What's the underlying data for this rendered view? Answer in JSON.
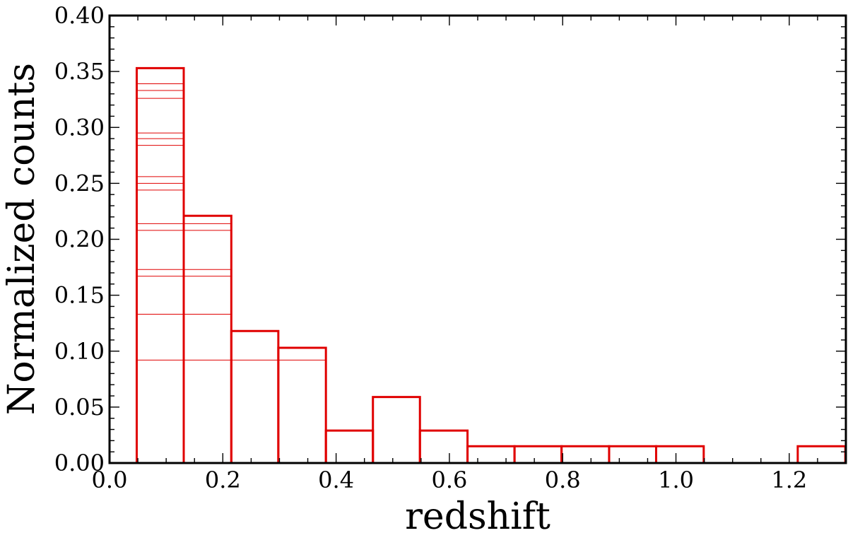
{
  "chart_data": {
    "type": "bar",
    "xlabel": "redshift",
    "ylabel": "Normalized counts",
    "xlim": [
      0.0,
      1.3
    ],
    "ylim": [
      0.0,
      0.4
    ],
    "x_ticks": [
      "0.0",
      "0.2",
      "0.4",
      "0.6",
      "0.8",
      "1.0",
      "1.2"
    ],
    "y_ticks": [
      "0.00",
      "0.05",
      "0.10",
      "0.15",
      "0.20",
      "0.25",
      "0.30",
      "0.35",
      "0.40"
    ],
    "color": "#e00000",
    "bins": [
      {
        "x0": 0.048,
        "x1": 0.131,
        "value": 0.353
      },
      {
        "x0": 0.131,
        "x1": 0.215,
        "value": 0.221
      },
      {
        "x0": 0.215,
        "x1": 0.298,
        "value": 0.118
      },
      {
        "x0": 0.298,
        "x1": 0.382,
        "value": 0.103
      },
      {
        "x0": 0.382,
        "x1": 0.465,
        "value": 0.029
      },
      {
        "x0": 0.465,
        "x1": 0.548,
        "value": 0.059
      },
      {
        "x0": 0.548,
        "x1": 0.632,
        "value": 0.029
      },
      {
        "x0": 0.632,
        "x1": 0.715,
        "value": 0.015
      },
      {
        "x0": 0.715,
        "x1": 0.798,
        "value": 0.015
      },
      {
        "x0": 0.798,
        "x1": 0.882,
        "value": 0.015
      },
      {
        "x0": 0.882,
        "x1": 0.965,
        "value": 0.015
      },
      {
        "x0": 0.965,
        "x1": 1.049,
        "value": 0.015
      },
      {
        "x0": 1.049,
        "x1": 1.132,
        "value": 0.0
      },
      {
        "x0": 1.132,
        "x1": 1.215,
        "value": 0.0
      },
      {
        "x0": 1.215,
        "x1": 1.299,
        "value": 0.015
      }
    ],
    "stacked_edges": [
      {
        "x0": 0.048,
        "x1": 0.131,
        "value": 0.339
      },
      {
        "x0": 0.048,
        "x1": 0.131,
        "value": 0.333
      },
      {
        "x0": 0.048,
        "x1": 0.131,
        "value": 0.326
      },
      {
        "x0": 0.048,
        "x1": 0.131,
        "value": 0.295
      },
      {
        "x0": 0.048,
        "x1": 0.131,
        "value": 0.29
      },
      {
        "x0": 0.048,
        "x1": 0.131,
        "value": 0.284
      },
      {
        "x0": 0.048,
        "x1": 0.131,
        "value": 0.256
      },
      {
        "x0": 0.048,
        "x1": 0.131,
        "value": 0.25
      },
      {
        "x0": 0.048,
        "x1": 0.131,
        "value": 0.244
      },
      {
        "x0": 0.048,
        "x1": 0.215,
        "value": 0.214
      },
      {
        "x0": 0.048,
        "x1": 0.215,
        "value": 0.208
      },
      {
        "x0": 0.048,
        "x1": 0.215,
        "value": 0.173
      },
      {
        "x0": 0.048,
        "x1": 0.215,
        "value": 0.167
      },
      {
        "x0": 0.048,
        "x1": 0.215,
        "value": 0.133
      },
      {
        "x0": 0.048,
        "x1": 0.382,
        "value": 0.092
      }
    ]
  }
}
